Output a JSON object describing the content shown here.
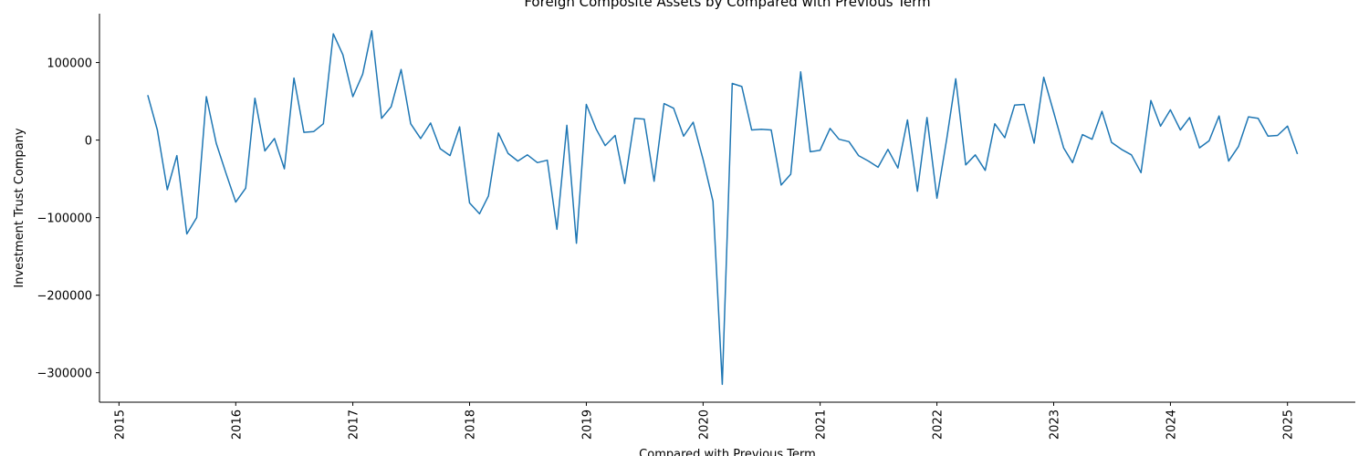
{
  "chart_data": {
    "type": "line",
    "title": "Foreign Composite Assets by Compared with Previous Term",
    "xlabel": "Compared with Previous Term",
    "ylabel": "Investment Trust Company",
    "xlim": [
      "2014-11-01",
      "2025-08-01"
    ],
    "ylim": [
      -338000,
      163000
    ],
    "x_ticks": [
      "2015",
      "2016",
      "2017",
      "2018",
      "2019",
      "2020",
      "2021",
      "2022",
      "2023",
      "2024",
      "2025"
    ],
    "y_ticks": [
      100000,
      0,
      -100000,
      -200000,
      -300000
    ],
    "y_tick_labels": [
      "100000",
      "0",
      "−100000",
      "−200000",
      "−300000"
    ],
    "grid": false,
    "color": "#1f77b4",
    "series": [
      {
        "x": [
          "2015-04",
          "2015-05",
          "2015-06",
          "2015-07",
          "2015-08",
          "2015-09",
          "2015-10",
          "2015-11",
          "2015-12",
          "2016-01",
          "2016-02",
          "2016-03",
          "2016-04",
          "2016-05",
          "2016-06",
          "2016-07",
          "2016-08",
          "2016-09",
          "2016-10",
          "2016-11",
          "2016-12",
          "2017-01",
          "2017-02",
          "2017-03",
          "2017-04",
          "2017-05",
          "2017-06",
          "2017-07",
          "2017-08",
          "2017-09",
          "2017-10",
          "2017-11",
          "2017-12",
          "2018-01",
          "2018-02",
          "2018-03",
          "2018-04",
          "2018-05",
          "2018-06",
          "2018-07",
          "2018-08",
          "2018-09",
          "2018-10",
          "2018-11",
          "2018-12",
          "2019-01",
          "2019-02",
          "2019-03",
          "2019-04",
          "2019-05",
          "2019-06",
          "2019-07",
          "2019-08",
          "2019-09",
          "2019-10",
          "2019-11",
          "2019-12",
          "2020-01",
          "2020-02",
          "2020-03",
          "2020-04",
          "2020-05",
          "2020-06",
          "2020-07",
          "2020-08",
          "2020-09",
          "2020-10",
          "2020-11",
          "2020-12",
          "2021-01",
          "2021-02",
          "2021-03",
          "2021-04",
          "2021-05",
          "2021-06",
          "2021-07",
          "2021-08",
          "2021-09",
          "2021-10",
          "2021-11",
          "2021-12",
          "2022-01",
          "2022-02",
          "2022-03",
          "2022-04",
          "2022-05",
          "2022-06",
          "2022-07",
          "2022-08",
          "2022-09",
          "2022-10",
          "2022-11",
          "2022-12",
          "2023-01",
          "2023-02",
          "2023-03",
          "2023-04",
          "2023-05",
          "2023-06",
          "2023-07",
          "2023-08",
          "2023-09",
          "2023-10",
          "2023-11",
          "2023-12",
          "2024-01",
          "2024-02",
          "2024-03",
          "2024-04",
          "2024-05",
          "2024-06",
          "2024-07",
          "2024-08",
          "2024-09",
          "2024-10",
          "2024-11",
          "2024-12",
          "2025-01",
          "2025-02"
        ],
        "values": [
          58000,
          13000,
          -64000,
          -20000,
          -121000,
          -100000,
          56000,
          -4000,
          -42000,
          -80000,
          -62000,
          54000,
          -14000,
          2000,
          -37000,
          80000,
          10000,
          11000,
          21000,
          137000,
          110000,
          56000,
          85000,
          141000,
          28000,
          43000,
          91000,
          21000,
          2000,
          22000,
          -11000,
          -20000,
          17000,
          -81000,
          -95000,
          -72000,
          9000,
          -17000,
          -27000,
          -19000,
          -29000,
          -26000,
          -115000,
          19000,
          -133000,
          46000,
          14000,
          -7000,
          6000,
          -56000,
          28000,
          27000,
          -53000,
          47000,
          41000,
          5000,
          23000,
          -25000,
          -79000,
          -315000,
          73000,
          69000,
          13000,
          14000,
          13000,
          -58000,
          -44000,
          88000,
          -15000,
          -13000,
          15000,
          1000,
          -2000,
          -20000,
          -27000,
          -35000,
          -12000,
          -36000,
          26000,
          -66000,
          29000,
          -75000,
          2000,
          79000,
          -32000,
          -19000,
          -39000,
          21000,
          3000,
          45000,
          46000,
          -4000,
          81000,
          36000,
          -10000,
          -29000,
          7000,
          1000,
          37000,
          -3000,
          -12000,
          -19000,
          -42000,
          51000,
          18000,
          39000,
          13000,
          29000,
          -10000,
          -1000,
          31000,
          -27000,
          -8000,
          30000,
          28000,
          5000,
          6000,
          18000,
          -18000
        ]
      }
    ]
  }
}
